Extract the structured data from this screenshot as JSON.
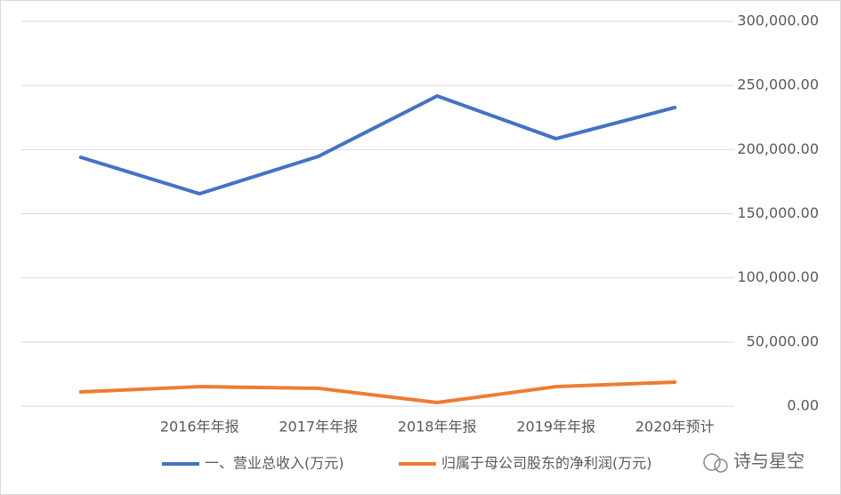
{
  "chart_data": {
    "type": "line",
    "categories": [
      null,
      "2016年年报",
      "2017年年报",
      "2018年年报",
      "2019年年报",
      "2020年预计"
    ],
    "series": [
      {
        "name": "一、营业总收入(万元)",
        "color": "#4472c4",
        "values": [
          194000,
          165600,
          194700,
          241800,
          208500,
          232800
        ]
      },
      {
        "name": "归属于母公司股东的净利润(万元)",
        "color": "#ed7d31",
        "values": [
          11100,
          15200,
          13900,
          2800,
          15200,
          18700
        ]
      }
    ],
    "ylim": [
      0,
      300000
    ],
    "yticks": [
      {
        "value": 0,
        "label": "0.00"
      },
      {
        "value": 50000,
        "label": "50,000.00"
      },
      {
        "value": 100000,
        "label": "100,000.00"
      },
      {
        "value": 150000,
        "label": "150,000.00"
      },
      {
        "value": 200000,
        "label": "200,000.00"
      },
      {
        "value": 250000,
        "label": "250,000.00"
      },
      {
        "value": 300000,
        "label": "300,000.00"
      }
    ],
    "grid": true,
    "legend": "bottom",
    "watermark": "诗与星空"
  }
}
